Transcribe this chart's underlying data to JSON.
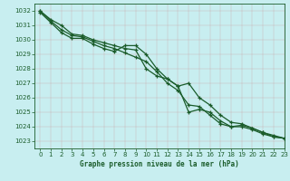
{
  "title": "Graphe pression niveau de la mer (hPa)",
  "background_color": "#c8eef0",
  "grid_color": "#b0c8c8",
  "line_color": "#1a5c2a",
  "xlim": [
    -0.5,
    23
  ],
  "ylim": [
    1022.5,
    1032.5
  ],
  "yticks": [
    1023,
    1024,
    1025,
    1026,
    1027,
    1028,
    1029,
    1030,
    1031,
    1032
  ],
  "xticks": [
    0,
    1,
    2,
    3,
    4,
    5,
    6,
    7,
    8,
    9,
    10,
    11,
    12,
    13,
    14,
    15,
    16,
    17,
    18,
    19,
    20,
    21,
    22,
    23
  ],
  "series": [
    [
      1032.0,
      1031.4,
      1031.0,
      1030.4,
      1030.3,
      1030.0,
      1029.8,
      1029.6,
      1029.4,
      1029.3,
      1028.0,
      1027.5,
      1027.3,
      1026.8,
      1025.0,
      1025.2,
      1025.0,
      1024.4,
      1024.0,
      1024.0,
      1023.8,
      1023.5,
      1023.3,
      1023.2
    ],
    [
      1031.9,
      1031.2,
      1030.5,
      1030.1,
      1030.1,
      1029.7,
      1029.4,
      1029.2,
      1029.6,
      1029.6,
      1029.0,
      1028.0,
      1027.3,
      1026.8,
      1027.0,
      1026.0,
      1025.5,
      1024.8,
      1024.3,
      1024.2,
      1023.9,
      1023.6,
      1023.4,
      1023.2
    ],
    [
      1032.0,
      1031.3,
      1030.7,
      1030.3,
      1030.2,
      1029.9,
      1029.6,
      1029.4,
      1029.1,
      1028.8,
      1028.5,
      1027.8,
      1027.0,
      1026.5,
      1025.5,
      1025.4,
      1024.8,
      1024.2,
      1024.0,
      1024.1,
      1023.9,
      1023.6,
      1023.3,
      1023.2
    ]
  ]
}
